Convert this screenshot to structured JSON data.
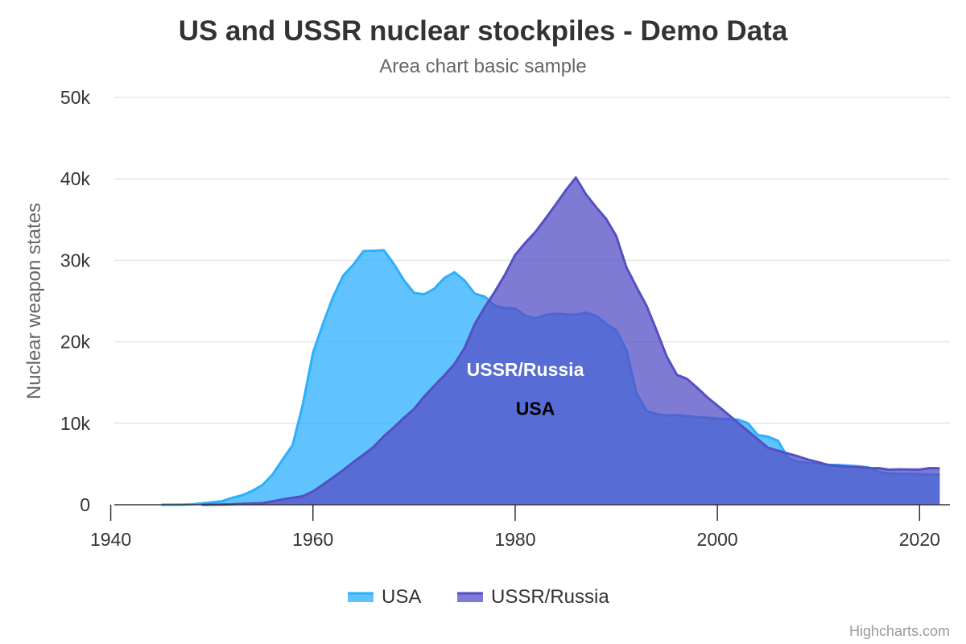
{
  "chart_data": {
    "type": "area",
    "title": "US and USSR nuclear stockpiles - Demo Data",
    "subtitle": "Area chart basic sample",
    "ylabel": "Nuclear weapon states",
    "xlabel": "",
    "xlim": [
      1939,
      2023
    ],
    "ylim": [
      0,
      50000
    ],
    "x_ticks": [
      1940,
      1960,
      1980,
      2000,
      2020
    ],
    "y_ticks": [
      0,
      10000,
      20000,
      30000,
      40000,
      50000
    ],
    "y_tick_labels": [
      "0",
      "10k",
      "20k",
      "30k",
      "40k",
      "50k"
    ],
    "grid": true,
    "legend": "bottom-center",
    "credit": "Highcharts.com",
    "series": [
      {
        "name": "USA",
        "color": "#2caffe",
        "label_color": "#000000",
        "label_at": [
          1982,
          11000
        ],
        "x": [
          1945,
          1946,
          1947,
          1948,
          1949,
          1950,
          1951,
          1952,
          1953,
          1954,
          1955,
          1956,
          1957,
          1958,
          1959,
          1960,
          1961,
          1962,
          1963,
          1964,
          1965,
          1966,
          1967,
          1968,
          1969,
          1970,
          1971,
          1972,
          1973,
          1974,
          1975,
          1976,
          1977,
          1978,
          1979,
          1980,
          1981,
          1982,
          1983,
          1984,
          1985,
          1986,
          1987,
          1988,
          1989,
          1990,
          1991,
          1992,
          1993,
          1994,
          1995,
          1996,
          1997,
          1998,
          1999,
          2000,
          2001,
          2002,
          2003,
          2004,
          2005,
          2006,
          2007,
          2008,
          2009,
          2010,
          2011,
          2012,
          2013,
          2014,
          2015,
          2016,
          2017,
          2018,
          2019,
          2020,
          2021,
          2022
        ],
        "values": [
          2,
          9,
          13,
          50,
          170,
          299,
          438,
          841,
          1169,
          1703,
          2422,
          3692,
          5543,
          7345,
          12298,
          18638,
          22229,
          25540,
          28133,
          29463,
          31139,
          31175,
          31255,
          29561,
          27552,
          26008,
          25830,
          26516,
          27835,
          28537,
          27519,
          25914,
          25542,
          24418,
          24138,
          24104,
          23208,
          22886,
          23305,
          23459,
          23368,
          23317,
          23575,
          23205,
          22217,
          21392,
          19008,
          13708,
          11511,
          11123,
          10953,
          11011,
          10903,
          10732,
          10685,
          10577,
          10526,
          10457,
          10027,
          8570,
          8360,
          7853,
          5709,
          5273,
          5113,
          5066,
          4897,
          4881,
          4804,
          4717,
          4571,
          4018,
          3822,
          3785,
          3805,
          3750,
          3708,
          3708
        ]
      },
      {
        "name": "USSR/Russia",
        "color": "#544fc5",
        "label_color": "#ffffff",
        "label_at": [
          1981,
          15800
        ],
        "x": [
          1949,
          1950,
          1951,
          1952,
          1953,
          1954,
          1955,
          1956,
          1957,
          1958,
          1959,
          1960,
          1961,
          1962,
          1963,
          1964,
          1965,
          1966,
          1967,
          1968,
          1969,
          1970,
          1971,
          1972,
          1973,
          1974,
          1975,
          1976,
          1977,
          1978,
          1979,
          1980,
          1981,
          1982,
          1983,
          1984,
          1985,
          1986,
          1987,
          1988,
          1989,
          1990,
          1991,
          1992,
          1993,
          1994,
          1995,
          1996,
          1997,
          1998,
          1999,
          2000,
          2001,
          2002,
          2003,
          2004,
          2005,
          2006,
          2007,
          2008,
          2009,
          2010,
          2011,
          2012,
          2013,
          2014,
          2015,
          2016,
          2017,
          2018,
          2019,
          2020,
          2021,
          2022
        ],
        "values": [
          1,
          5,
          25,
          50,
          120,
          150,
          200,
          426,
          660,
          863,
          1048,
          1627,
          2492,
          3346,
          4259,
          5242,
          6144,
          7091,
          8400,
          9490,
          10671,
          11736,
          13279,
          14600,
          15878,
          17286,
          19235,
          22165,
          24281,
          26169,
          28258,
          30665,
          32146,
          33486,
          35130,
          36825,
          38582,
          40159,
          38107,
          36538,
          35078,
          32980,
          29154,
          26734,
          24403,
          21339,
          18179,
          15942,
          15442,
          14368,
          13188,
          12188,
          11152,
          10114,
          9076,
          8038,
          7000,
          6643,
          6286,
          5929,
          5527,
          5215,
          4858,
          4750,
          4650,
          4600,
          4500,
          4490,
          4300,
          4350,
          4330,
          4310,
          4495,
          4477
        ]
      }
    ]
  }
}
